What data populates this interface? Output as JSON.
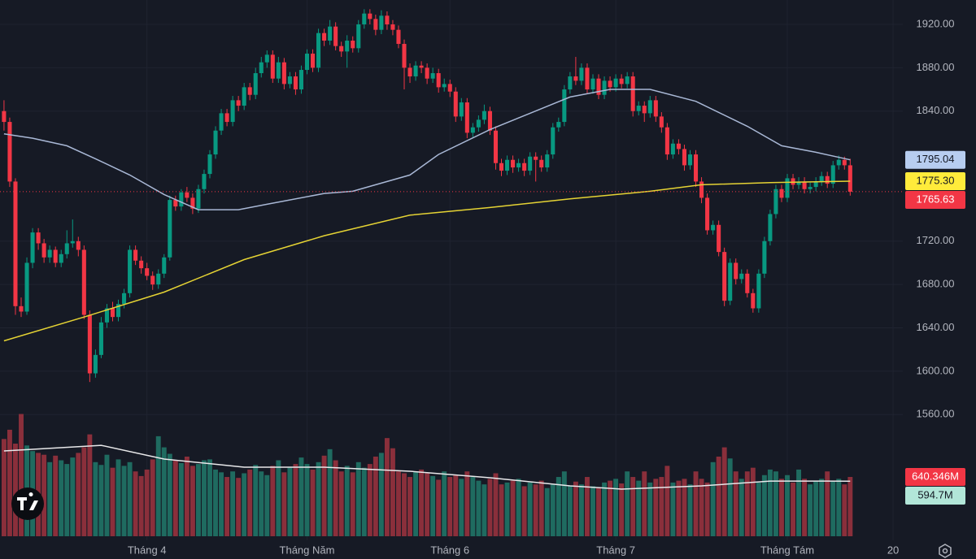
{
  "chart_data": {
    "type": "candlestick",
    "up_color": "#089981",
    "down_color": "#f23645",
    "xlim": [
      -0.7,
      157.2
    ],
    "xticks": [
      {
        "value": 25,
        "label": "Tháng 4"
      },
      {
        "value": 53,
        "label": "Tháng Năm"
      },
      {
        "value": 78,
        "label": "Tháng 6"
      },
      {
        "value": 107,
        "label": "Tháng 7"
      },
      {
        "value": 137,
        "label": "Tháng Tám"
      },
      {
        "value": 155.5,
        "label": "20"
      }
    ],
    "ylim": [
      1447.7,
      1942.5
    ],
    "yticks": [
      {
        "value": 1560,
        "label": "1560.00"
      },
      {
        "value": 1600,
        "label": "1600.00"
      },
      {
        "value": 1640,
        "label": "1640.00"
      },
      {
        "value": 1680,
        "label": "1680.00"
      },
      {
        "value": 1720,
        "label": "1720.00"
      },
      {
        "value": 1840,
        "label": "1840.00"
      },
      {
        "value": 1880,
        "label": "1880.00"
      },
      {
        "value": 1920,
        "label": "1920.00"
      }
    ],
    "grid": true,
    "ohlc": [
      [
        1840,
        1850,
        1822,
        1830
      ],
      [
        1830,
        1834,
        1770,
        1775
      ],
      [
        1775,
        1778,
        1652,
        1660
      ],
      [
        1660,
        1668,
        1650,
        1655
      ],
      [
        1655,
        1705,
        1652,
        1700
      ],
      [
        1700,
        1732,
        1695,
        1728
      ],
      [
        1728,
        1732,
        1712,
        1718
      ],
      [
        1718,
        1722,
        1700,
        1705
      ],
      [
        1705,
        1716,
        1700,
        1712
      ],
      [
        1712,
        1715,
        1696,
        1700
      ],
      [
        1700,
        1712,
        1696,
        1708
      ],
      [
        1708,
        1730,
        1704,
        1718
      ],
      [
        1718,
        1740,
        1714,
        1720
      ],
      [
        1720,
        1724,
        1706,
        1712
      ],
      [
        1712,
        1716,
        1648,
        1652
      ],
      [
        1652,
        1656,
        1590,
        1598
      ],
      [
        1598,
        1620,
        1594,
        1615
      ],
      [
        1615,
        1650,
        1612,
        1645
      ],
      [
        1645,
        1662,
        1640,
        1658
      ],
      [
        1658,
        1664,
        1646,
        1650
      ],
      [
        1650,
        1666,
        1646,
        1662
      ],
      [
        1662,
        1676,
        1658,
        1672
      ],
      [
        1672,
        1716,
        1668,
        1712
      ],
      [
        1712,
        1716,
        1698,
        1702
      ],
      [
        1702,
        1706,
        1690,
        1695
      ],
      [
        1695,
        1700,
        1684,
        1688
      ],
      [
        1688,
        1692,
        1675,
        1680
      ],
      [
        1680,
        1694,
        1676,
        1690
      ],
      [
        1690,
        1708,
        1686,
        1705
      ],
      [
        1705,
        1762,
        1702,
        1758
      ],
      [
        1758,
        1762,
        1748,
        1752
      ],
      [
        1752,
        1768,
        1748,
        1765
      ],
      [
        1765,
        1770,
        1756,
        1760
      ],
      [
        1760,
        1764,
        1745,
        1750
      ],
      [
        1750,
        1772,
        1746,
        1768
      ],
      [
        1768,
        1786,
        1764,
        1782
      ],
      [
        1782,
        1804,
        1778,
        1800
      ],
      [
        1800,
        1826,
        1796,
        1822
      ],
      [
        1822,
        1842,
        1818,
        1838
      ],
      [
        1838,
        1842,
        1826,
        1830
      ],
      [
        1830,
        1854,
        1826,
        1850
      ],
      [
        1850,
        1854,
        1840,
        1845
      ],
      [
        1845,
        1866,
        1841,
        1862
      ],
      [
        1862,
        1866,
        1850,
        1855
      ],
      [
        1855,
        1880,
        1851,
        1875
      ],
      [
        1875,
        1890,
        1871,
        1885
      ],
      [
        1885,
        1896,
        1880,
        1892
      ],
      [
        1892,
        1896,
        1866,
        1870
      ],
      [
        1870,
        1890,
        1866,
        1885
      ],
      [
        1885,
        1889,
        1860,
        1865
      ],
      [
        1865,
        1876,
        1861,
        1872
      ],
      [
        1872,
        1876,
        1855,
        1860
      ],
      [
        1860,
        1882,
        1856,
        1878
      ],
      [
        1878,
        1897,
        1874,
        1893
      ],
      [
        1893,
        1897,
        1876,
        1880
      ],
      [
        1880,
        1916,
        1876,
        1912
      ],
      [
        1912,
        1916,
        1900,
        1905
      ],
      [
        1905,
        1924,
        1901,
        1918
      ],
      [
        1918,
        1922,
        1896,
        1900
      ],
      [
        1900,
        1904,
        1890,
        1895
      ],
      [
        1895,
        1910,
        1880,
        1905
      ],
      [
        1905,
        1909,
        1894,
        1898
      ],
      [
        1898,
        1924,
        1894,
        1920
      ],
      [
        1920,
        1934,
        1916,
        1930
      ],
      [
        1930,
        1934,
        1920,
        1925
      ],
      [
        1925,
        1929,
        1910,
        1915
      ],
      [
        1915,
        1933,
        1911,
        1928
      ],
      [
        1928,
        1932,
        1915,
        1920
      ],
      [
        1920,
        1924,
        1910,
        1915
      ],
      [
        1915,
        1919,
        1898,
        1902
      ],
      [
        1902,
        1906,
        1860,
        1880
      ],
      [
        1880,
        1884,
        1866,
        1872
      ],
      [
        1872,
        1886,
        1868,
        1882
      ],
      [
        1882,
        1886,
        1875,
        1880
      ],
      [
        1880,
        1884,
        1865,
        1870
      ],
      [
        1870,
        1880,
        1866,
        1875
      ],
      [
        1875,
        1879,
        1857,
        1862
      ],
      [
        1862,
        1870,
        1858,
        1865
      ],
      [
        1865,
        1869,
        1853,
        1858
      ],
      [
        1858,
        1862,
        1830,
        1835
      ],
      [
        1835,
        1852,
        1831,
        1848
      ],
      [
        1848,
        1852,
        1815,
        1820
      ],
      [
        1820,
        1829,
        1816,
        1825
      ],
      [
        1825,
        1836,
        1821,
        1832
      ],
      [
        1832,
        1846,
        1828,
        1840
      ],
      [
        1840,
        1844,
        1818,
        1822
      ],
      [
        1822,
        1826,
        1786,
        1792
      ],
      [
        1792,
        1796,
        1780,
        1785
      ],
      [
        1785,
        1799,
        1781,
        1795
      ],
      [
        1795,
        1799,
        1783,
        1788
      ],
      [
        1788,
        1796,
        1784,
        1792
      ],
      [
        1792,
        1796,
        1780,
        1785
      ],
      [
        1785,
        1802,
        1781,
        1798
      ],
      [
        1798,
        1802,
        1775,
        1795
      ],
      [
        1795,
        1799,
        1784,
        1788
      ],
      [
        1788,
        1804,
        1784,
        1800
      ],
      [
        1800,
        1829,
        1796,
        1825
      ],
      [
        1825,
        1834,
        1821,
        1830
      ],
      [
        1830,
        1864,
        1826,
        1860
      ],
      [
        1860,
        1876,
        1856,
        1872
      ],
      [
        1872,
        1890,
        1864,
        1868
      ],
      [
        1868,
        1884,
        1864,
        1880
      ],
      [
        1880,
        1884,
        1856,
        1860
      ],
      [
        1860,
        1874,
        1856,
        1870
      ],
      [
        1870,
        1874,
        1851,
        1855
      ],
      [
        1855,
        1872,
        1851,
        1868
      ],
      [
        1868,
        1872,
        1858,
        1862
      ],
      [
        1862,
        1874,
        1858,
        1870
      ],
      [
        1870,
        1874,
        1861,
        1865
      ],
      [
        1865,
        1876,
        1861,
        1872
      ],
      [
        1872,
        1876,
        1835,
        1840
      ],
      [
        1840,
        1849,
        1836,
        1845
      ],
      [
        1845,
        1849,
        1830,
        1838
      ],
      [
        1838,
        1854,
        1834,
        1850
      ],
      [
        1850,
        1854,
        1830,
        1835
      ],
      [
        1835,
        1839,
        1820,
        1825
      ],
      [
        1825,
        1829,
        1795,
        1800
      ],
      [
        1800,
        1814,
        1796,
        1810
      ],
      [
        1810,
        1814,
        1800,
        1805
      ],
      [
        1805,
        1809,
        1785,
        1790
      ],
      [
        1790,
        1804,
        1786,
        1800
      ],
      [
        1800,
        1804,
        1770,
        1775
      ],
      [
        1775,
        1779,
        1755,
        1760
      ],
      [
        1760,
        1764,
        1726,
        1730
      ],
      [
        1730,
        1739,
        1726,
        1735
      ],
      [
        1735,
        1739,
        1706,
        1710
      ],
      [
        1710,
        1714,
        1660,
        1665
      ],
      [
        1665,
        1704,
        1661,
        1700
      ],
      [
        1700,
        1704,
        1680,
        1685
      ],
      [
        1685,
        1694,
        1681,
        1690
      ],
      [
        1690,
        1694,
        1668,
        1672
      ],
      [
        1672,
        1676,
        1654,
        1658
      ],
      [
        1658,
        1694,
        1654,
        1690
      ],
      [
        1690,
        1724,
        1686,
        1720
      ],
      [
        1720,
        1749,
        1716,
        1745
      ],
      [
        1745,
        1772,
        1741,
        1768
      ],
      [
        1768,
        1772,
        1756,
        1760
      ],
      [
        1760,
        1782,
        1756,
        1778
      ],
      [
        1778,
        1782,
        1768,
        1772
      ],
      [
        1772,
        1779,
        1768,
        1775
      ],
      [
        1775,
        1779,
        1764,
        1768
      ],
      [
        1768,
        1774,
        1764,
        1770
      ],
      [
        1770,
        1779,
        1766,
        1775
      ],
      [
        1775,
        1784,
        1771,
        1780
      ],
      [
        1780,
        1784,
        1769,
        1773
      ],
      [
        1773,
        1794,
        1769,
        1790
      ],
      [
        1790,
        1799,
        1786,
        1795
      ],
      [
        1795,
        1798,
        1786,
        1790
      ],
      [
        1790,
        1796,
        1762,
        1765.63
      ]
    ],
    "series": [
      {
        "color": "#a9b8d6",
        "label_color": "#b7cdf0",
        "x": [
          0,
          5,
          11,
          16,
          22,
          28,
          34,
          41,
          46,
          56,
          61,
          71,
          76,
          85,
          92,
          99,
          106,
          113,
          121,
          130,
          136,
          142,
          148
        ],
        "values": [
          1819,
          1815,
          1808,
          1796,
          1781,
          1763,
          1749,
          1749,
          1754,
          1764,
          1766,
          1781,
          1800,
          1823,
          1838,
          1853,
          1860,
          1860,
          1849,
          1826,
          1808,
          1802,
          1795.04
        ]
      },
      {
        "color": "#e5d334",
        "label_color": "#ffeb3b",
        "x": [
          0,
          14,
          28,
          42,
          56,
          71,
          85,
          99,
          113,
          122,
          134,
          148
        ],
        "values": [
          1628,
          1650,
          1673,
          1703,
          1725,
          1744,
          1751,
          1759,
          1766,
          1772,
          1774,
          1775.3
        ],
        "value_labels": [
          null,
          null,
          null,
          null,
          null,
          null,
          null,
          null,
          null,
          null,
          null,
          "1775.30"
        ]
      }
    ],
    "volume": {
      "ylim": [
        0,
        5790
      ],
      "up_color": "#1f6b60",
      "down_color": "#8a2f3b",
      "values": [
        1050,
        1150,
        1000,
        1320,
        980,
        920,
        900,
        880,
        800,
        870,
        820,
        780,
        850,
        900,
        960,
        1100,
        800,
        770,
        880,
        740,
        830,
        760,
        800,
        700,
        650,
        720,
        830,
        1080,
        960,
        890,
        820,
        790,
        860,
        760,
        780,
        820,
        830,
        720,
        690,
        640,
        700,
        630,
        680,
        720,
        770,
        700,
        660,
        760,
        820,
        690,
        740,
        780,
        850,
        780,
        720,
        800,
        870,
        940,
        820,
        700,
        760,
        690,
        800,
        740,
        780,
        860,
        900,
        1060,
        950,
        700,
        680,
        640,
        700,
        720,
        680,
        650,
        610,
        700,
        640,
        660,
        620,
        700,
        640,
        600,
        560,
        620,
        680,
        560,
        580,
        600,
        620,
        540,
        580,
        560,
        600,
        520,
        560,
        640,
        700,
        540,
        590,
        560,
        640,
        540,
        520,
        580,
        600,
        620,
        570,
        700,
        640,
        600,
        700,
        580,
        620,
        640,
        760,
        580,
        600,
        620,
        560,
        700,
        620,
        580,
        800,
        860,
        960,
        840,
        700,
        620,
        700,
        740,
        580,
        660,
        720,
        700,
        620,
        660,
        580,
        720,
        620,
        560,
        600,
        620,
        700,
        600,
        620,
        560,
        640.346
      ],
      "value_labels": [
        null,
        null,
        null,
        null,
        null,
        null,
        null,
        null,
        null,
        null,
        null,
        null,
        null,
        null,
        null,
        null,
        null,
        null,
        null,
        null,
        null,
        null,
        null,
        null,
        null,
        null,
        null,
        null,
        null,
        null,
        null,
        null,
        null,
        null,
        null,
        null,
        null,
        null,
        null,
        null,
        null,
        null,
        null,
        null,
        null,
        null,
        null,
        null,
        null,
        null,
        null,
        null,
        null,
        null,
        null,
        null,
        null,
        null,
        null,
        null,
        null,
        null,
        null,
        null,
        null,
        null,
        null,
        null,
        null,
        null,
        null,
        null,
        null,
        null,
        null,
        null,
        null,
        null,
        null,
        null,
        null,
        null,
        null,
        null,
        null,
        null,
        null,
        null,
        null,
        null,
        null,
        null,
        null,
        null,
        null,
        null,
        null,
        null,
        null,
        null,
        null,
        null,
        null,
        null,
        null,
        null,
        null,
        null,
        null,
        null,
        null,
        null,
        null,
        null,
        null,
        null,
        null,
        null,
        null,
        null,
        null,
        null,
        null,
        null,
        null,
        null,
        null,
        null,
        null,
        null,
        null,
        null,
        null,
        null,
        null,
        null,
        null,
        null,
        null,
        null,
        null,
        null,
        null,
        null,
        null,
        null,
        null,
        null,
        "640.346M"
      ],
      "ma": {
        "color": "#e8e8ea",
        "label_color": "#b2e6d8",
        "x": [
          0,
          17,
          28,
          42,
          56,
          71,
          85,
          99,
          108,
          122,
          134,
          148
        ],
        "values": [
          921,
          982,
          833,
          746,
          746,
          702,
          632,
          544,
          509,
          544,
          596,
          594.7
        ],
        "value_labels": [
          null,
          null,
          null,
          null,
          null,
          null,
          null,
          null,
          null,
          null,
          null,
          "594.7M"
        ]
      }
    }
  }
}
